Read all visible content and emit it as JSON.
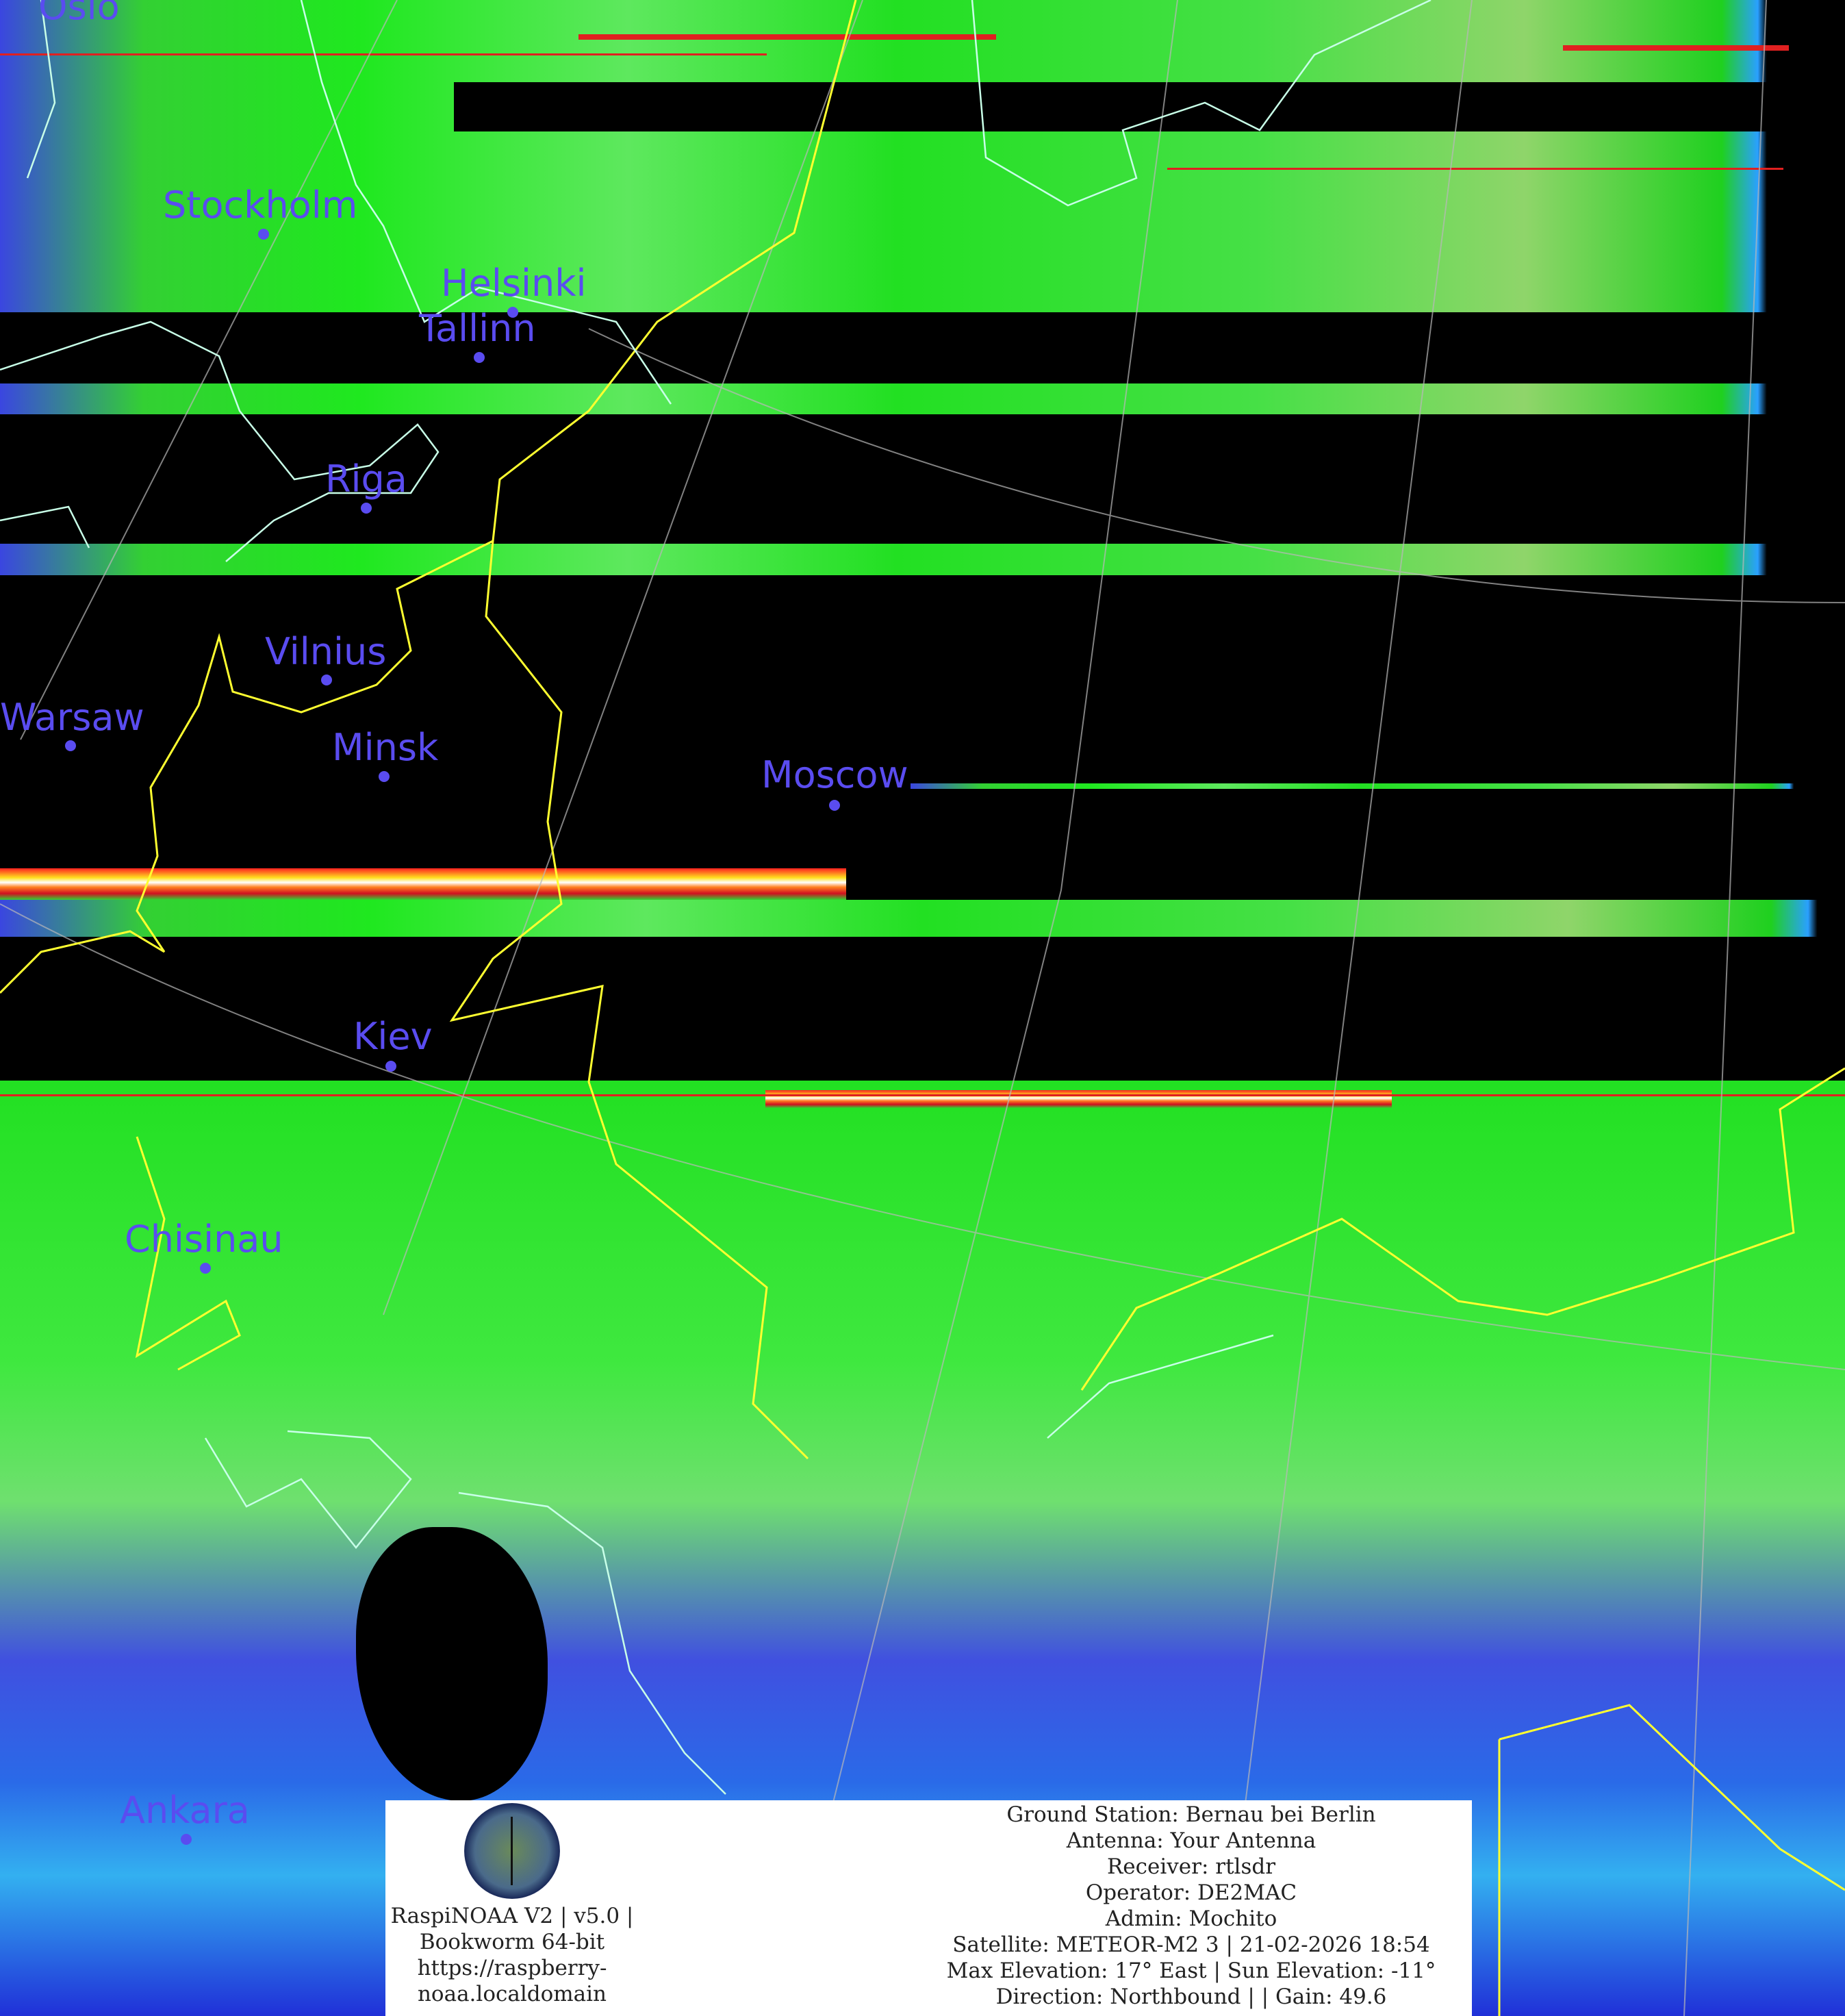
{
  "image": {
    "type": "satellite-weather-image",
    "colors": {
      "land_cloudfree": "#22e022",
      "cloud": "#4050e0",
      "city_label": "#5a4cf0",
      "borders": "#ffff33",
      "coastline": "#c0ffe0",
      "background": "#000000"
    }
  },
  "cities": [
    {
      "name": "Oslo"
    },
    {
      "name": "Stockholm"
    },
    {
      "name": "Helsinki"
    },
    {
      "name": "Tallinn"
    },
    {
      "name": "Riga"
    },
    {
      "name": "Vilnius"
    },
    {
      "name": "Warsaw"
    },
    {
      "name": "Minsk"
    },
    {
      "name": "Moscow"
    },
    {
      "name": "Kiev"
    },
    {
      "name": "Chisinau"
    },
    {
      "name": "Ankara"
    }
  ],
  "info": {
    "software": [
      "RaspiNOAA V2 | v5.0 |",
      "Bookworm 64-bit",
      "https://raspberry-",
      "noaa.localdomain"
    ],
    "ground_station": "Ground Station: Bernau bei Berlin",
    "antenna": "Antenna: Your Antenna",
    "receiver": "Receiver: rtlsdr",
    "operator": "Operator: DE2MAC",
    "admin": "Admin: Mochito",
    "satellite": "Satellite: METEOR-M2 3 | 21-02-2026 18:54",
    "elevation": "Max Elevation: 17° East | Sun Elevation: -11°",
    "direction": "Direction: Northbound | | Gain: 49.6"
  }
}
